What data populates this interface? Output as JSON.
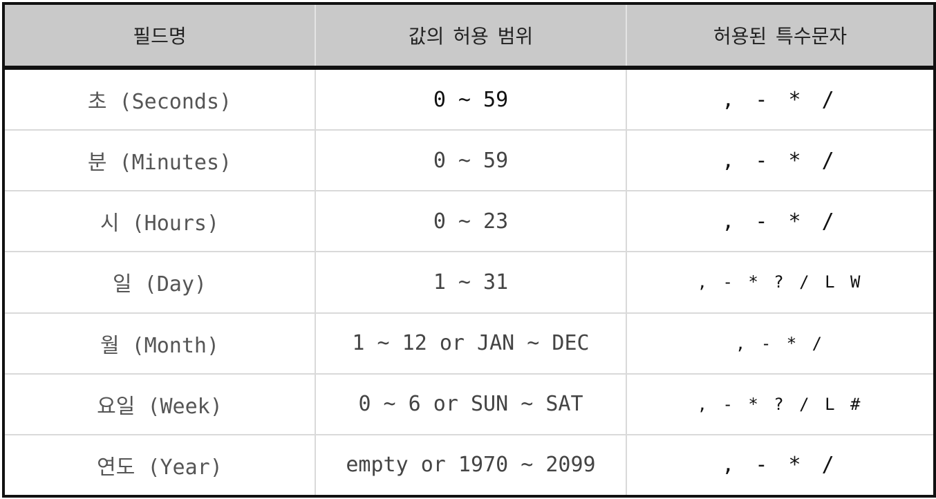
{
  "table": {
    "headers": [
      "필드명",
      "값의 허용 범위",
      "허용된 특수문자"
    ],
    "rows": [
      {
        "field": "초 (Seconds)",
        "range": "0 ~ 59",
        "chars": ", - * /"
      },
      {
        "field": "분 (Minutes)",
        "range": "0 ~ 59",
        "chars": ", - * /"
      },
      {
        "field": "시 (Hours)",
        "range": "0 ~ 23",
        "chars": ", - * /"
      },
      {
        "field": "일 (Day)",
        "range": "1 ~ 31",
        "chars": ", - * ? / L W"
      },
      {
        "field": "월 (Month)",
        "range": "1 ~ 12 or JAN ~ DEC",
        "chars": ", - * /"
      },
      {
        "field": "요일 (Week)",
        "range": "0 ~ 6 or SUN ~ SAT",
        "chars": ", - * ? / L #"
      },
      {
        "field": "연도 (Year)",
        "range": "empty or 1970 ~ 2099",
        "chars": ", - * /"
      }
    ]
  },
  "colors": {
    "header_bg": "#c9c9c9",
    "border": "#111111",
    "grid": "#d9d9d9"
  }
}
